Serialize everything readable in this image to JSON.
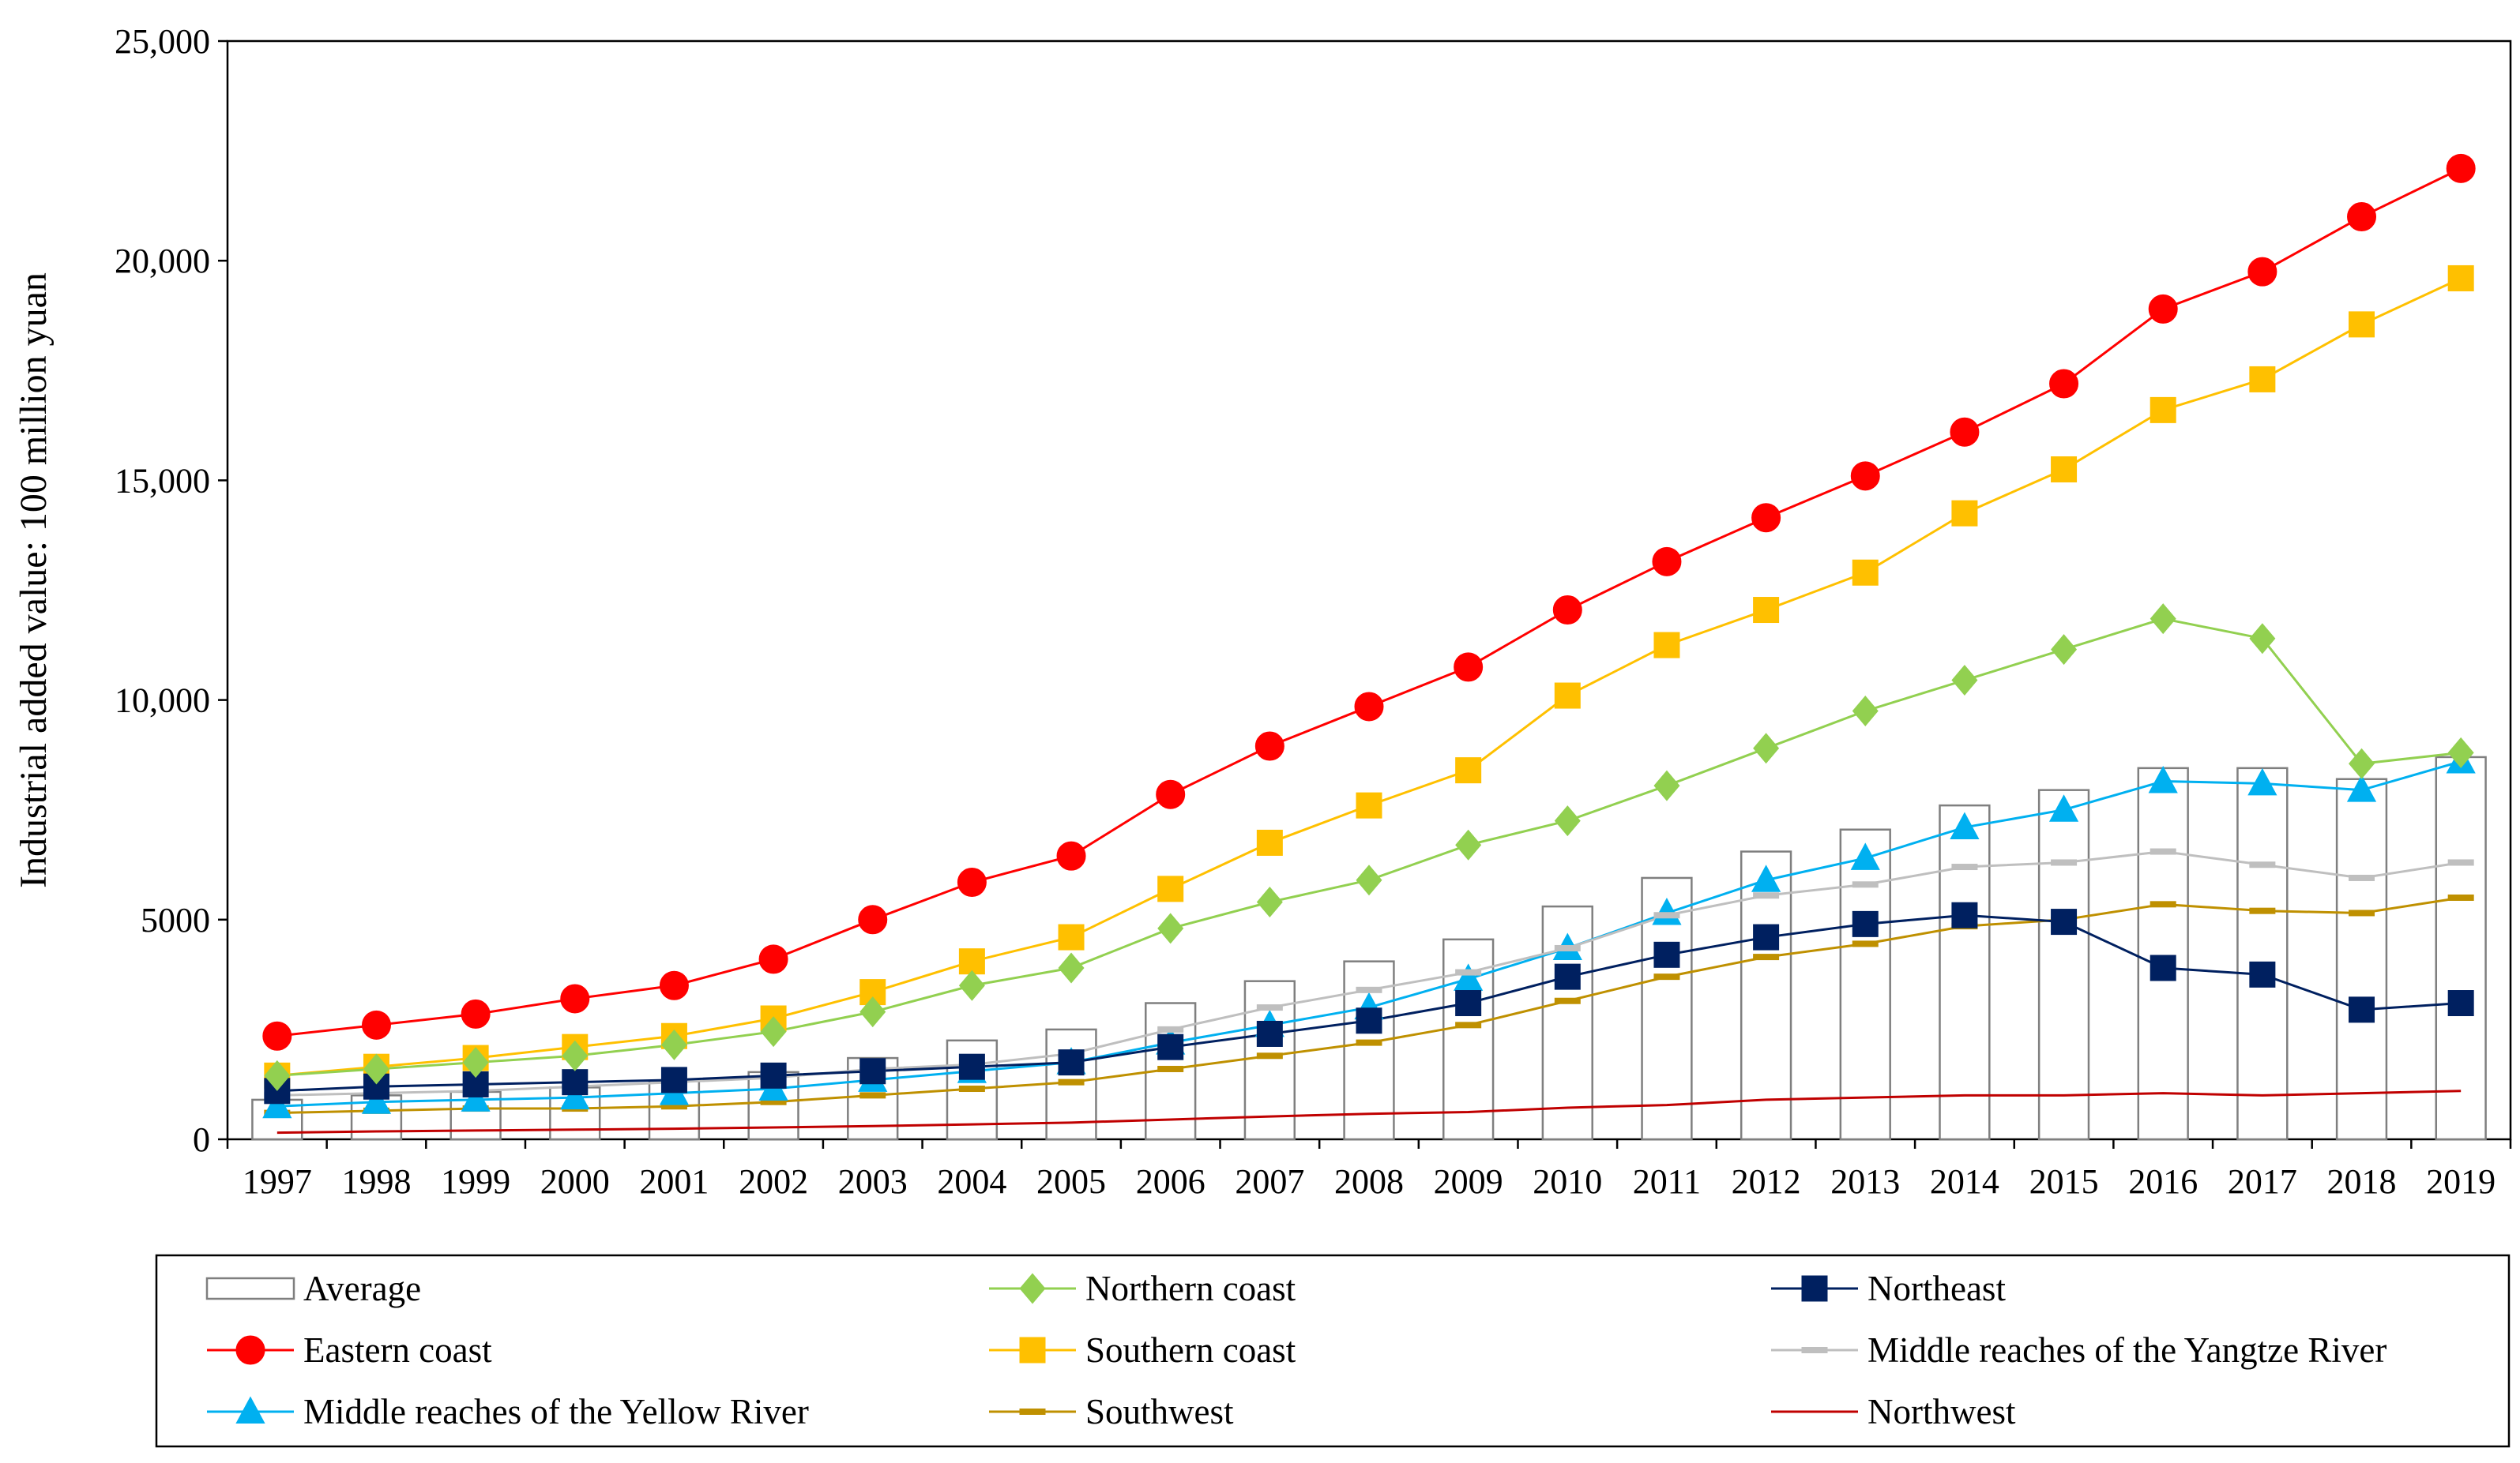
{
  "chart_data": {
    "type": "line",
    "title": "",
    "xlabel": "",
    "ylabel": "Industrial added value: 100 million yuan",
    "ylim": [
      0,
      25000
    ],
    "yticks": [
      0,
      5000,
      10000,
      15000,
      20000,
      25000
    ],
    "ytick_labels": [
      "0",
      "5000",
      "10,000",
      "15,000",
      "20,000",
      "25,000"
    ],
    "grid": false,
    "legend_position": "bottom",
    "categories": [
      "1997",
      "1998",
      "1999",
      "2000",
      "2001",
      "2002",
      "2003",
      "2004",
      "2005",
      "2006",
      "2007",
      "2008",
      "2009",
      "2010",
      "2011",
      "2012",
      "2013",
      "2014",
      "2015",
      "2016",
      "2017",
      "2018",
      "2019"
    ],
    "series": [
      {
        "name": "Average",
        "kind": "bar",
        "color": "#7f7f7f",
        "values": [
          900,
          1000,
          1080,
          1180,
          1330,
          1530,
          1850,
          2250,
          2500,
          3100,
          3600,
          4050,
          4550,
          5300,
          5950,
          6550,
          7050,
          7600,
          7950,
          8450,
          8450,
          8200,
          8700
        ]
      },
      {
        "name": "Northern coast",
        "kind": "line",
        "marker": "diamond",
        "color": "#92d050",
        "values": [
          1450,
          1600,
          1750,
          1900,
          2150,
          2450,
          2900,
          3500,
          3900,
          4800,
          5400,
          5900,
          6700,
          7250,
          8050,
          8900,
          9750,
          10450,
          11150,
          11850,
          11400,
          8550,
          8800
        ]
      },
      {
        "name": "Northeast",
        "kind": "line",
        "marker": "square",
        "color": "#002060",
        "values": [
          1100,
          1200,
          1250,
          1300,
          1350,
          1450,
          1550,
          1650,
          1750,
          2100,
          2400,
          2700,
          3100,
          3700,
          4200,
          4600,
          4900,
          5100,
          4950,
          3900,
          3750,
          2950,
          3100
        ]
      },
      {
        "name": "Eastern coast",
        "kind": "line",
        "marker": "circle",
        "color": "#ff0000",
        "values": [
          2350,
          2600,
          2850,
          3200,
          3500,
          4100,
          5000,
          5850,
          6450,
          7850,
          8950,
          9850,
          10750,
          12050,
          13150,
          14150,
          15100,
          16100,
          17200,
          18900,
          19750,
          21000,
          22100
        ]
      },
      {
        "name": "Southern coast",
        "kind": "line",
        "marker": "square",
        "color": "#ffc000",
        "values": [
          1450,
          1650,
          1850,
          2100,
          2350,
          2750,
          3350,
          4050,
          4600,
          5700,
          6750,
          7600,
          8400,
          10100,
          11250,
          12050,
          12900,
          14250,
          15250,
          16600,
          17300,
          18550,
          19600
        ]
      },
      {
        "name": "Middle reaches of the Yangtze River",
        "kind": "line",
        "marker": "dash",
        "color": "#bfbfbf",
        "values": [
          1000,
          1050,
          1100,
          1200,
          1300,
          1400,
          1600,
          1700,
          1950,
          2500,
          3000,
          3400,
          3800,
          4350,
          5100,
          5550,
          5800,
          6200,
          6300,
          6550,
          6250,
          5950,
          6300
        ]
      },
      {
        "name": "Middle reaches of the Yellow River",
        "kind": "line",
        "marker": "triangle",
        "color": "#00b0f0",
        "values": [
          750,
          850,
          900,
          950,
          1050,
          1150,
          1350,
          1550,
          1750,
          2200,
          2600,
          3000,
          3650,
          4350,
          5150,
          5900,
          6400,
          7100,
          7500,
          8150,
          8100,
          7950,
          8600
        ]
      },
      {
        "name": "Southwest",
        "kind": "line",
        "marker": "dash",
        "color": "#bf9000",
        "values": [
          600,
          650,
          700,
          700,
          750,
          850,
          1000,
          1150,
          1300,
          1600,
          1900,
          2200,
          2600,
          3150,
          3700,
          4150,
          4450,
          4850,
          5000,
          5350,
          5200,
          5150,
          5500
        ]
      },
      {
        "name": "Northwest",
        "kind": "line",
        "marker": "none",
        "color": "#c00000",
        "values": [
          150,
          180,
          200,
          220,
          240,
          270,
          300,
          340,
          380,
          450,
          520,
          580,
          620,
          720,
          780,
          900,
          950,
          1000,
          1000,
          1050,
          1000,
          1050,
          1100
        ]
      }
    ]
  }
}
